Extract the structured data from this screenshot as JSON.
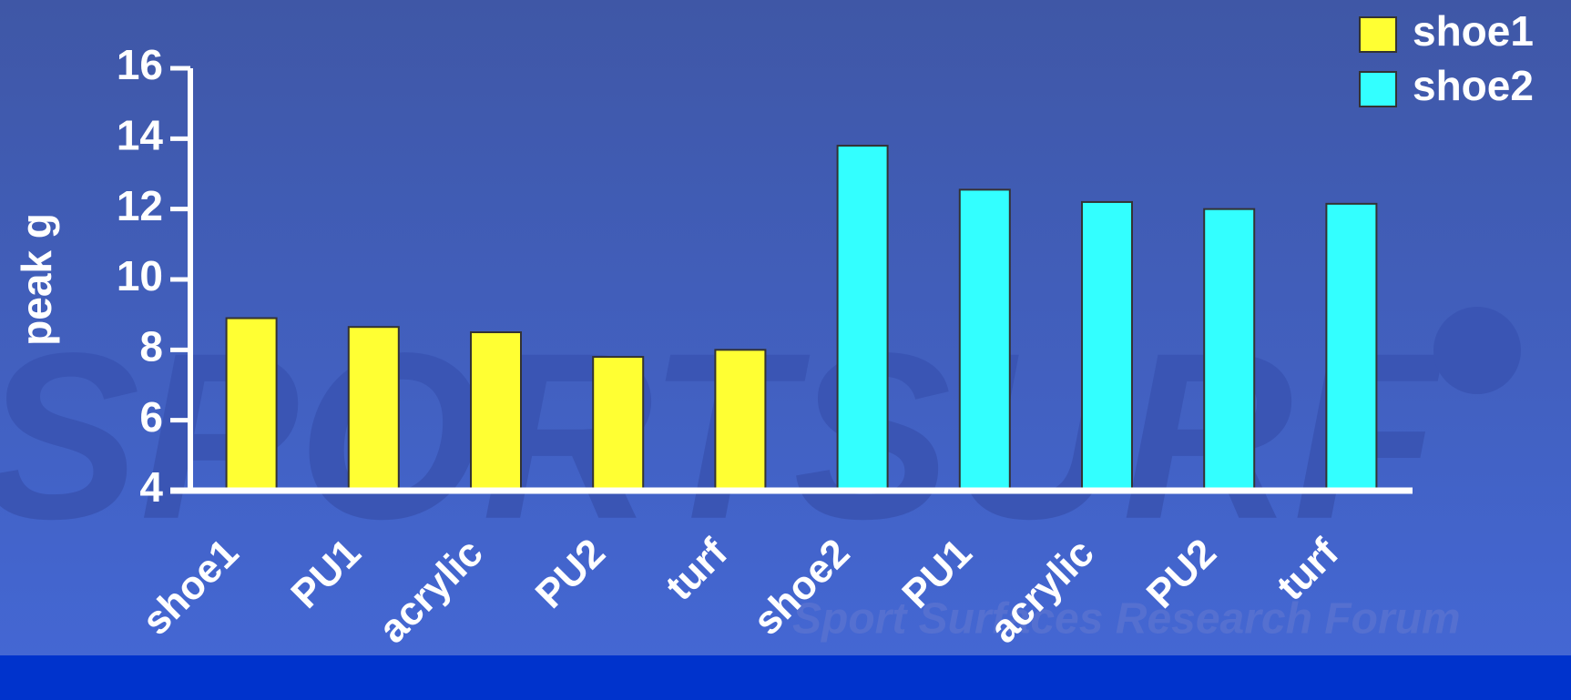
{
  "chart_data": {
    "type": "bar",
    "ylabel": "peak g",
    "categories": [
      "shoe1",
      "PU1",
      "acrylic",
      "PU2",
      "turf",
      "shoe2",
      "PU1",
      "acrylic",
      "PU2",
      "turf"
    ],
    "series": [
      {
        "name": "shoe1",
        "color": "#ffff33",
        "values": [
          8.9,
          8.65,
          8.5,
          7.8,
          8.0,
          null,
          null,
          null,
          null,
          null
        ]
      },
      {
        "name": "shoe2",
        "color": "#33ffff",
        "values": [
          null,
          null,
          null,
          null,
          null,
          13.8,
          12.55,
          12.2,
          12.0,
          12.15
        ]
      }
    ],
    "ylim": [
      4,
      16
    ],
    "yticks": [
      4,
      6,
      8,
      10,
      12,
      14,
      16
    ],
    "legend": "top-right"
  },
  "watermark": {
    "logo": "SPORTSURF",
    "tagline": "Sport Surfaces Research Forum"
  }
}
